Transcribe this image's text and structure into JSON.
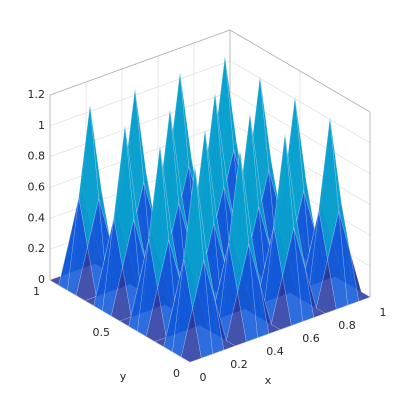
{
  "chart_data": {
    "type": "surface",
    "colormap": "parula",
    "grid": true,
    "xlabel": "x",
    "ylabel": "y",
    "x": [
      0,
      0.0625,
      0.125,
      0.1875,
      0.25,
      0.3125,
      0.375,
      0.4375,
      0.5,
      0.5625,
      0.625,
      0.6875,
      0.75,
      0.8125,
      0.875,
      0.9375,
      1
    ],
    "y": [
      0,
      0.0625,
      0.125,
      0.1875,
      0.25,
      0.3125,
      0.375,
      0.4375,
      0.5,
      0.5625,
      0.625,
      0.6875,
      0.75,
      0.8125,
      0.875,
      0.9375,
      1
    ],
    "z": [
      [
        0,
        0,
        0,
        0,
        0,
        0,
        0,
        0,
        0,
        0,
        0,
        0,
        0,
        0,
        0,
        0,
        0
      ],
      [
        0,
        0.2875,
        0.575,
        0.2875,
        0,
        0.2875,
        0.575,
        0.2875,
        0,
        0.2875,
        0.575,
        0.2875,
        0,
        0.2875,
        0.575,
        0.2875,
        0
      ],
      [
        0,
        0.575,
        1.15,
        0.575,
        0,
        0.575,
        1.15,
        0.575,
        0,
        0.575,
        1.15,
        0.575,
        0,
        0.575,
        1.15,
        0.575,
        0
      ],
      [
        0,
        0.2875,
        0.575,
        0.2875,
        0,
        0.2875,
        0.575,
        0.2875,
        0,
        0.2875,
        0.575,
        0.2875,
        0,
        0.2875,
        0.575,
        0.2875,
        0
      ],
      [
        0,
        0,
        0,
        0,
        0,
        0,
        0,
        0,
        0,
        0,
        0,
        0,
        0,
        0,
        0,
        0,
        0
      ],
      [
        0,
        0.2875,
        0.575,
        0.2875,
        0,
        0.2875,
        0.575,
        0.2875,
        0,
        0.2875,
        0.575,
        0.2875,
        0,
        0.2875,
        0.575,
        0.2875,
        0
      ],
      [
        0,
        0.575,
        1.15,
        0.575,
        0,
        0.575,
        1.15,
        0.575,
        0,
        0.575,
        1.15,
        0.575,
        0,
        0.575,
        1.15,
        0.575,
        0
      ],
      [
        0,
        0.2875,
        0.575,
        0.2875,
        0,
        0.2875,
        0.575,
        0.2875,
        0,
        0.2875,
        0.575,
        0.2875,
        0,
        0.2875,
        0.575,
        0.2875,
        0
      ],
      [
        0,
        0,
        0,
        0,
        0,
        0,
        0,
        0,
        0,
        0,
        0,
        0,
        0,
        0,
        0,
        0,
        0
      ],
      [
        0,
        0.2875,
        0.575,
        0.2875,
        0,
        0.2875,
        0.575,
        0.2875,
        0,
        0.2875,
        0.575,
        0.2875,
        0,
        0.2875,
        0.575,
        0.2875,
        0
      ],
      [
        0,
        0.575,
        1.15,
        0.575,
        0,
        0.575,
        1.15,
        0.575,
        0,
        0.575,
        1.15,
        0.575,
        0,
        0.575,
        1.15,
        0.575,
        0
      ],
      [
        0,
        0.2875,
        0.575,
        0.2875,
        0,
        0.2875,
        0.575,
        0.2875,
        0,
        0.2875,
        0.575,
        0.2875,
        0,
        0.2875,
        0.575,
        0.2875,
        0
      ],
      [
        0,
        0,
        0,
        0,
        0,
        0,
        0,
        0,
        0,
        0,
        0,
        0,
        0,
        0,
        0,
        0,
        0
      ],
      [
        0,
        0.2875,
        0.575,
        0.2875,
        0,
        0.2875,
        0.575,
        0.2875,
        0,
        0.2875,
        0.575,
        0.2875,
        0,
        0.2875,
        0.575,
        0.2875,
        0
      ],
      [
        0,
        0.575,
        1.15,
        0.575,
        0,
        0.575,
        1.15,
        0.575,
        0,
        0.575,
        1.15,
        0.575,
        0,
        0.575,
        1.15,
        0.575,
        0
      ],
      [
        0,
        0.2875,
        0.575,
        0.2875,
        0,
        0.2875,
        0.575,
        0.2875,
        0,
        0.2875,
        0.575,
        0.2875,
        0,
        0.2875,
        0.575,
        0.2875,
        0
      ],
      [
        0,
        0,
        0,
        0,
        0,
        0,
        0,
        0,
        0,
        0,
        0,
        0,
        0,
        0,
        0,
        0,
        0
      ]
    ],
    "xlim": [
      0,
      1
    ],
    "ylim": [
      0,
      1
    ],
    "zlim": [
      0,
      1.2
    ],
    "xticks": [
      0,
      0.2,
      0.4,
      0.6,
      0.8,
      1
    ],
    "yticks": [
      0,
      0.5,
      1
    ],
    "zticks": [
      0,
      0.2,
      0.4,
      0.6,
      0.8,
      1,
      1.2
    ]
  }
}
